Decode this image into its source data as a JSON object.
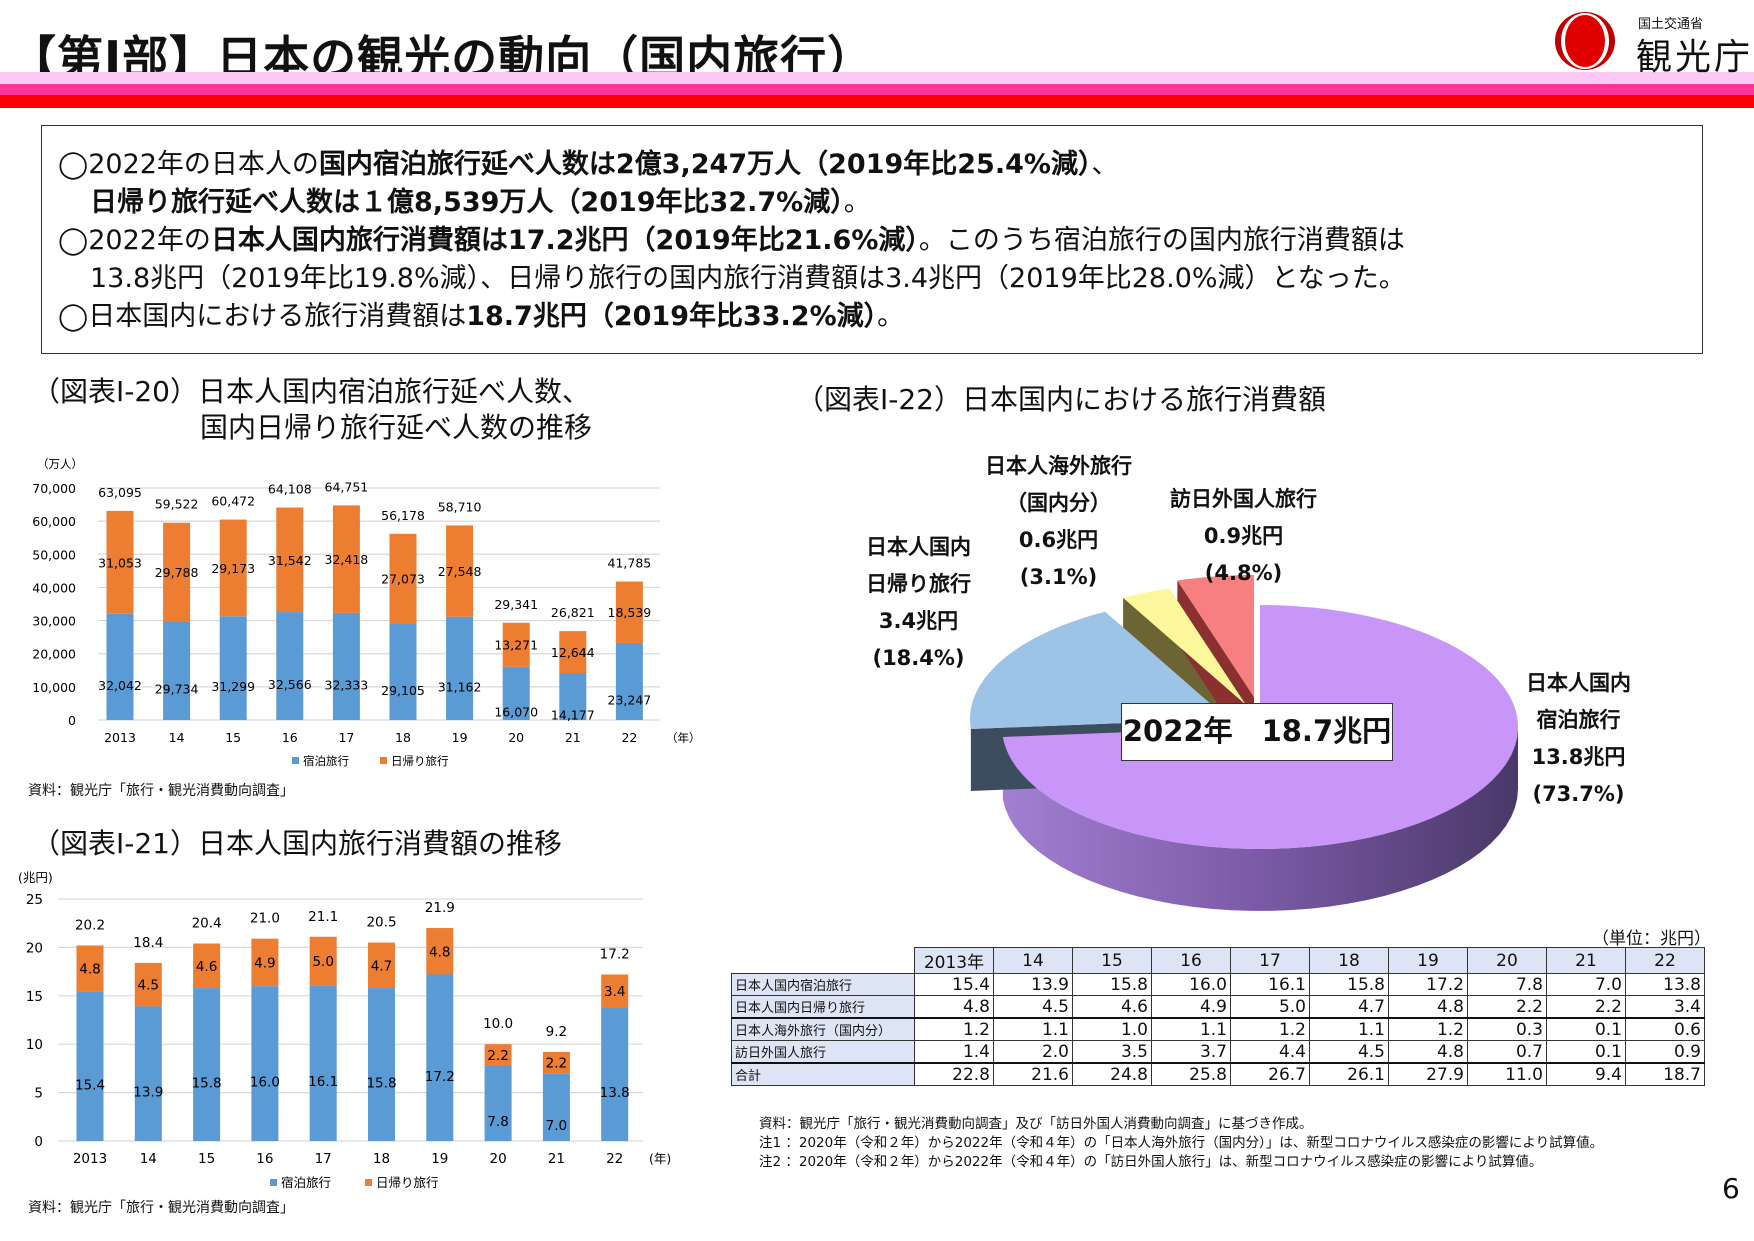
{
  "header": {
    "title": "【第Ⅰ部】日本の観光の動向（国内旅行）",
    "logo_ministry": "国土交通省",
    "logo_agency": "観光庁",
    "colors": {
      "band_light": "#fcc8f4",
      "band_mid": "#ff3399",
      "band_red": "#ff0000"
    }
  },
  "summary": {
    "l1a": "◯2022年の日本人の",
    "l1b": "国内宿泊旅行延べ人数は2億3,247万人（2019年比25.4%減）",
    "l1c": "、",
    "l2a": "日帰り旅行延べ人数は１億8,539万人（2019年比32.7%減）",
    "l2b": "。",
    "l3a": "◯2022年の",
    "l3b": "日本人国内旅行消費額は17.2兆円（2019年比21.6%減）",
    "l3c": "。このうち宿泊旅行の国内旅行消費額は",
    "l4": "13.8兆円（2019年比19.8%減）、日帰り旅行の国内旅行消費額は3.4兆円（2019年比28.0%減）となった。",
    "l5a": "◯日本国内における旅行消費額は",
    "l5b": "18.7兆円（2019年比33.2%減）",
    "l5c": "。"
  },
  "fig20": {
    "title_l1": "（図表Ⅰ-20）日本人国内宿泊旅行延べ人数、",
    "title_l2": "国内日帰り旅行延べ人数の推移",
    "source": "資料：観光庁「旅行・観光消費動向調査」"
  },
  "fig21": {
    "title": "（図表Ⅰ-21）日本人国内旅行消費額の推移",
    "source": "資料：観光庁「旅行・観光消費動向調査」"
  },
  "fig22": {
    "title": "（図表Ⅰ-22）日本国内における旅行消費額",
    "center_label": "2022年　18.7兆円"
  },
  "chart_data": [
    {
      "type": "bar",
      "stacked": true,
      "categories": [
        "2013",
        "14",
        "15",
        "16",
        "17",
        "18",
        "19",
        "20",
        "21",
        "22"
      ],
      "xlabel": "（年）",
      "ylabel": "（万人）",
      "ylim": [
        0,
        70000
      ],
      "yticks": [
        "0",
        "10,000",
        "20,000",
        "30,000",
        "40,000",
        "50,000",
        "60,000",
        "70,000"
      ],
      "grid": true,
      "legend": "bottom",
      "series": [
        {
          "name": "宿泊旅行",
          "color": "#5b9bd5",
          "values": [
            32042,
            29734,
            31299,
            32566,
            32333,
            29105,
            31162,
            16070,
            14177,
            23247
          ],
          "labels": [
            "32,042",
            "29,734",
            "31,299",
            "32,566",
            "32,333",
            "29,105",
            "31,162",
            "16,070",
            "14,177",
            "23,247"
          ]
        },
        {
          "name": "日帰り旅行",
          "color": "#ed7d31",
          "values": [
            31053,
            29788,
            29173,
            31542,
            32418,
            27073,
            27548,
            13271,
            12644,
            18539
          ],
          "labels": [
            "31,053",
            "29,788",
            "29,173",
            "31,542",
            "32,418",
            "27,073",
            "27,548",
            "13,271",
            "12,644",
            "18,539"
          ]
        }
      ],
      "totals": [
        "63,095",
        "59,522",
        "60,472",
        "64,108",
        "64,751",
        "56,178",
        "58,710",
        "29,341",
        "26,821",
        "41,785"
      ]
    },
    {
      "type": "bar",
      "stacked": true,
      "categories": [
        "2013",
        "14",
        "15",
        "16",
        "17",
        "18",
        "19",
        "20",
        "21",
        "22"
      ],
      "xlabel": "(年)",
      "ylabel": "(兆円)",
      "ylim": [
        0,
        25
      ],
      "yticks": [
        "0",
        "5",
        "10",
        "15",
        "20",
        "25"
      ],
      "grid": true,
      "legend": "bottom",
      "series": [
        {
          "name": "宿泊旅行",
          "color": "#5b9bd5",
          "values": [
            15.4,
            13.9,
            15.8,
            16.0,
            16.1,
            15.8,
            17.2,
            7.8,
            7.0,
            13.8
          ],
          "labels": [
            "15.4",
            "13.9",
            "15.8",
            "16.0",
            "16.1",
            "15.8",
            "17.2",
            "7.8",
            "7.0",
            "13.8"
          ]
        },
        {
          "name": "日帰り旅行",
          "color": "#ed7d31",
          "values": [
            4.8,
            4.5,
            4.6,
            4.9,
            5.0,
            4.7,
            4.8,
            2.2,
            2.2,
            3.4
          ],
          "labels": [
            "4.8",
            "4.5",
            "4.6",
            "4.9",
            "5.0",
            "4.7",
            "4.8",
            "2.2",
            "2.2",
            "3.4"
          ]
        }
      ],
      "totals": [
        "20.2",
        "18.4",
        "20.4",
        "21.0",
        "21.1",
        "20.5",
        "21.9",
        "10.0",
        "9.2",
        "17.2"
      ]
    },
    {
      "type": "pie",
      "style": "3d-exploded",
      "slices": [
        {
          "label_l1": "日本人国内",
          "label_l2": "宿泊旅行",
          "value": 13.8,
          "value_label": "13.8兆円",
          "pct_label": "(73.7%)",
          "percent": 73.7,
          "color": "#c896f8"
        },
        {
          "label_l1": "日本人国内",
          "label_l2": "日帰り旅行",
          "value": 3.4,
          "value_label": "3.4兆円",
          "pct_label": "(18.4%)",
          "percent": 18.4,
          "color": "#9dc3e6"
        },
        {
          "label_l1": "日本人海外旅行",
          "label_l2": "（国内分）",
          "value": 0.6,
          "value_label": "0.6兆円",
          "pct_label": "(3.1%)",
          "percent": 3.1,
          "color": "#fbf79a"
        },
        {
          "label_l1": "訪日外国人旅行",
          "label_l2": "",
          "value": 0.9,
          "value_label": "0.9兆円",
          "pct_label": "(4.8%)",
          "percent": 4.8,
          "color": "#f77f7f"
        }
      ]
    }
  ],
  "table": {
    "unit": "（単位：兆円）",
    "columns": [
      "2013年",
      "14",
      "15",
      "16",
      "17",
      "18",
      "19",
      "20",
      "21",
      "22"
    ],
    "rows": [
      {
        "label": "日本人国内宿泊旅行",
        "values": [
          "15.4",
          "13.9",
          "15.8",
          "16.0",
          "16.1",
          "15.8",
          "17.2",
          "7.8",
          "7.0",
          "13.8"
        ]
      },
      {
        "label": "日本人国内日帰り旅行",
        "values": [
          "4.8",
          "4.5",
          "4.6",
          "4.9",
          "5.0",
          "4.7",
          "4.8",
          "2.2",
          "2.2",
          "3.4"
        ]
      },
      {
        "label": "日本人海外旅行（国内分）",
        "values": [
          "1.2",
          "1.1",
          "1.0",
          "1.1",
          "1.2",
          "1.1",
          "1.2",
          "0.3",
          "0.1",
          "0.6"
        ]
      },
      {
        "label": "訪日外国人旅行",
        "values": [
          "1.4",
          "2.0",
          "3.5",
          "3.7",
          "4.4",
          "4.5",
          "4.8",
          "0.7",
          "0.1",
          "0.9"
        ]
      },
      {
        "label": "合計",
        "values": [
          "22.8",
          "21.6",
          "24.8",
          "25.8",
          "26.7",
          "26.1",
          "27.9",
          "11.0",
          "9.4",
          "18.7"
        ]
      }
    ]
  },
  "notes": [
    "資料：観光庁「旅行・観光消費動向調査」及び「訪日外国人消費動向調査」に基づき作成。",
    "注1 ：2020年（令和２年）から2022年（令和４年）の「日本人海外旅行（国内分）」は、新型コロナウイルス感染症の影響により試算値。",
    "注2 ：2020年（令和２年）から2022年（令和４年）の「訪日外国人旅行」は、新型コロナウイルス感染症の影響により試算値。"
  ],
  "page_number": "6"
}
